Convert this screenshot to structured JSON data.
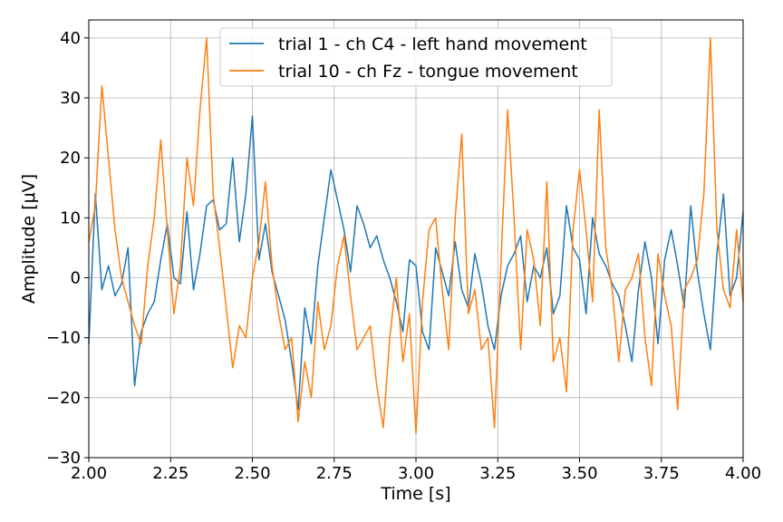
{
  "chart_data": {
    "type": "line",
    "xlabel": "Time [s]",
    "ylabel": "Amplitude [μV]",
    "xlim": [
      2.0,
      4.0
    ],
    "ylim": [
      -30,
      43
    ],
    "xticks": [
      2.0,
      2.25,
      2.5,
      2.75,
      3.0,
      3.25,
      3.5,
      3.75,
      4.0
    ],
    "xtick_labels": [
      "2.00",
      "2.25",
      "2.50",
      "2.75",
      "3.00",
      "3.25",
      "3.50",
      "3.75",
      "4.00"
    ],
    "yticks": [
      -30,
      -20,
      -10,
      0,
      10,
      20,
      30,
      40
    ],
    "ytick_labels": [
      "−30",
      "−20",
      "−10",
      "0",
      "10",
      "20",
      "30",
      "40"
    ],
    "grid": true,
    "legend_position": "top-center",
    "series": [
      {
        "name": "trial 1 - ch C4 - left hand movement",
        "color": "#1f77b4",
        "x": [
          2.0,
          2.02,
          2.04,
          2.06,
          2.08,
          2.1,
          2.12,
          2.14,
          2.16,
          2.18,
          2.2,
          2.22,
          2.24,
          2.26,
          2.28,
          2.3,
          2.32,
          2.34,
          2.36,
          2.38,
          2.4,
          2.42,
          2.44,
          2.46,
          2.48,
          2.5,
          2.52,
          2.54,
          2.56,
          2.58,
          2.6,
          2.62,
          2.64,
          2.66,
          2.68,
          2.7,
          2.72,
          2.74,
          2.76,
          2.78,
          2.8,
          2.82,
          2.84,
          2.86,
          2.88,
          2.9,
          2.92,
          2.94,
          2.96,
          2.98,
          3.0,
          3.02,
          3.04,
          3.06,
          3.08,
          3.1,
          3.12,
          3.14,
          3.16,
          3.18,
          3.2,
          3.22,
          3.24,
          3.26,
          3.28,
          3.3,
          3.32,
          3.34,
          3.36,
          3.38,
          3.4,
          3.42,
          3.44,
          3.46,
          3.48,
          3.5,
          3.52,
          3.54,
          3.56,
          3.58,
          3.6,
          3.62,
          3.64,
          3.66,
          3.68,
          3.7,
          3.72,
          3.74,
          3.76,
          3.78,
          3.8,
          3.82,
          3.84,
          3.86,
          3.88,
          3.9,
          3.92,
          3.94,
          3.96,
          3.98,
          4.0
        ],
        "y": [
          -11,
          14,
          -2,
          2,
          -3,
          -1,
          5,
          -18,
          -9,
          -6,
          -4,
          3,
          9,
          0,
          -1,
          11,
          -2,
          4,
          12,
          13,
          8,
          9,
          20,
          6,
          14,
          27,
          3,
          9,
          1,
          -3,
          -7,
          -14,
          -22,
          -5,
          -11,
          2,
          10,
          18,
          13,
          8,
          1,
          12,
          9,
          5,
          7,
          3,
          0,
          -4,
          -9,
          3,
          2,
          -9,
          -12,
          5,
          1,
          -3,
          6,
          -2,
          -5,
          4,
          -1,
          -8,
          -12,
          -3,
          2,
          4,
          7,
          -4,
          2,
          0,
          5,
          -6,
          -3,
          12,
          5,
          3,
          -6,
          10,
          4,
          2,
          -1,
          -3,
          -8,
          -14,
          -2,
          6,
          0,
          -11,
          3,
          8,
          2,
          -5,
          12,
          1,
          -6,
          -12,
          4,
          14,
          -3,
          0,
          11
        ]
      },
      {
        "name": "trial 10 - ch Fz - tongue movement",
        "color": "#ff7f0e",
        "x": [
          2.0,
          2.02,
          2.04,
          2.06,
          2.08,
          2.1,
          2.12,
          2.14,
          2.16,
          2.18,
          2.2,
          2.22,
          2.24,
          2.26,
          2.28,
          2.3,
          2.32,
          2.34,
          2.36,
          2.38,
          2.4,
          2.42,
          2.44,
          2.46,
          2.48,
          2.5,
          2.52,
          2.54,
          2.56,
          2.58,
          2.6,
          2.62,
          2.64,
          2.66,
          2.68,
          2.7,
          2.72,
          2.74,
          2.76,
          2.78,
          2.8,
          2.82,
          2.84,
          2.86,
          2.88,
          2.9,
          2.92,
          2.94,
          2.96,
          2.98,
          3.0,
          3.02,
          3.04,
          3.06,
          3.08,
          3.1,
          3.12,
          3.14,
          3.16,
          3.18,
          3.2,
          3.22,
          3.24,
          3.26,
          3.28,
          3.3,
          3.32,
          3.34,
          3.36,
          3.38,
          3.4,
          3.42,
          3.44,
          3.46,
          3.48,
          3.5,
          3.52,
          3.54,
          3.56,
          3.58,
          3.6,
          3.62,
          3.64,
          3.66,
          3.68,
          3.7,
          3.72,
          3.74,
          3.76,
          3.78,
          3.8,
          3.82,
          3.84,
          3.86,
          3.88,
          3.9,
          3.92,
          3.94,
          3.96,
          3.98,
          4.0
        ],
        "y": [
          6,
          12,
          32,
          20,
          8,
          0,
          -4,
          -8,
          -11,
          2,
          10,
          23,
          8,
          -6,
          2,
          20,
          12,
          28,
          40,
          14,
          5,
          -5,
          -15,
          -8,
          -10,
          0,
          6,
          16,
          2,
          -6,
          -12,
          -10,
          -24,
          -14,
          -20,
          -4,
          -12,
          -8,
          2,
          7,
          -3,
          -12,
          -10,
          -8,
          -18,
          -25,
          -10,
          0,
          -14,
          -6,
          -26,
          -4,
          8,
          10,
          -2,
          -12,
          10,
          24,
          -6,
          -2,
          -12,
          -10,
          -25,
          3,
          28,
          10,
          -12,
          8,
          3,
          -8,
          16,
          -14,
          -10,
          -19,
          8,
          18,
          8,
          -4,
          28,
          5,
          -2,
          -14,
          -2,
          0,
          4,
          -10,
          -18,
          4,
          -3,
          -8,
          -22,
          -2,
          0,
          3,
          14,
          40,
          8,
          -2,
          -5,
          8,
          -4
        ]
      }
    ]
  }
}
